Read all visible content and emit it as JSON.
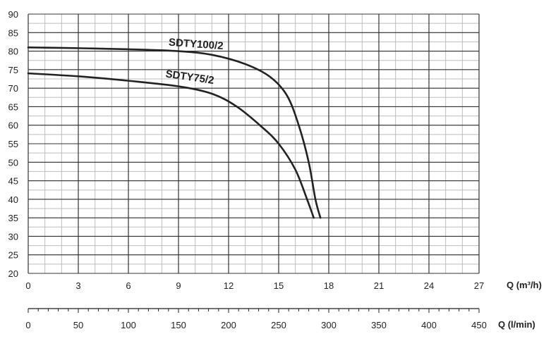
{
  "chart_data": {
    "type": "line",
    "x_axis": {
      "label": "Q (m³/h)",
      "range": [
        0,
        27
      ],
      "ticks": [
        0,
        3,
        6,
        9,
        12,
        15,
        18,
        21,
        24,
        27
      ],
      "tick_labels": [
        "0",
        "3",
        "6",
        "9",
        "12",
        "15",
        "18",
        "21",
        "24",
        "27"
      ],
      "minor_step": 1
    },
    "x2_axis": {
      "label": "Q (l/min)",
      "range": [
        0,
        450
      ],
      "ticks": [
        0,
        50,
        100,
        150,
        200,
        250,
        300,
        350,
        400,
        450
      ],
      "tick_labels": [
        "0",
        "50",
        "100",
        "150",
        "200",
        "250",
        "300",
        "350",
        "400",
        "450"
      ],
      "minor_step": 10
    },
    "y_axis": {
      "label": "",
      "range": [
        20,
        90
      ],
      "ticks": [
        20,
        25,
        30,
        35,
        40,
        45,
        50,
        55,
        60,
        65,
        70,
        75,
        80,
        85,
        90
      ],
      "tick_labels": [
        "20",
        "25",
        "30",
        "35",
        "40",
        "45",
        "50",
        "55",
        "60",
        "65",
        "70",
        "75",
        "80",
        "85",
        "90"
      ],
      "minor_step": 2.5
    },
    "grid": true,
    "series": [
      {
        "name": "SDTY100/2",
        "x": [
          0,
          3,
          6,
          9,
          11,
          13,
          14.5,
          15.5,
          16.2,
          16.8,
          17.2,
          17.5
        ],
        "y": [
          81,
          80.8,
          80.5,
          80,
          79,
          76.5,
          73,
          68,
          60,
          50,
          40,
          35
        ]
      },
      {
        "name": "SDTY75/2",
        "x": [
          0,
          3,
          6,
          9,
          11,
          12.5,
          14,
          15,
          16,
          16.7,
          17.1
        ],
        "y": [
          74,
          73.2,
          72,
          70.5,
          68.5,
          65,
          59.5,
          55,
          48,
          40,
          35
        ]
      }
    ],
    "annotations": [
      {
        "text": "SDTY100/2",
        "x": 8.4,
        "y": 81.5,
        "angle": 4
      },
      {
        "text": "SDTY75/2",
        "x": 8.2,
        "y": 73.0,
        "angle": 8
      }
    ]
  },
  "colors": {
    "curve": "#222222",
    "major_grid": "#333333",
    "minor_grid": "#bdbdbd",
    "axis": "#222222"
  }
}
